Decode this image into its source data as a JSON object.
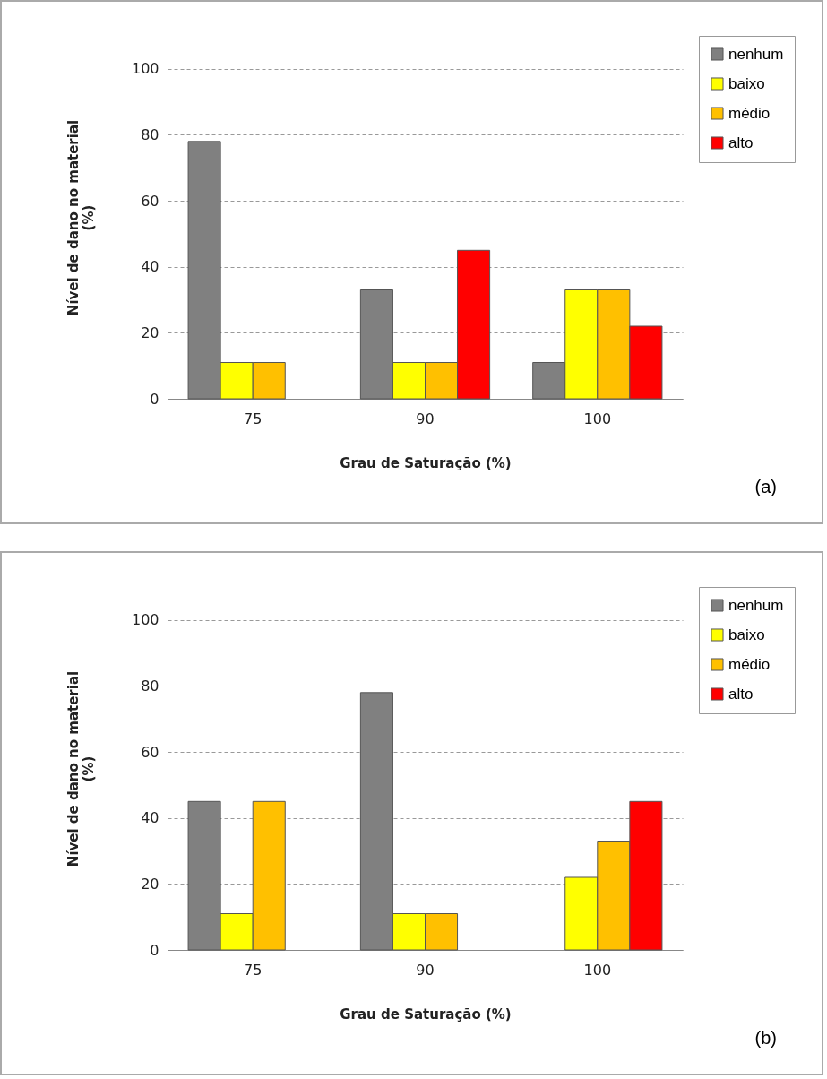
{
  "chart_data": [
    {
      "type": "bar",
      "xlabel": "Grau de Saturação (%)",
      "ylabel": "Nível de dano no material (%)",
      "categories": [
        "75",
        "90",
        "100"
      ],
      "series": [
        {
          "name": "nenhum",
          "color": "#808080",
          "values": [
            78,
            33,
            11
          ]
        },
        {
          "name": "baixo",
          "color": "#ffff00",
          "values": [
            11,
            11,
            33
          ]
        },
        {
          "name": "médio",
          "color": "#ffc000",
          "values": [
            11,
            11,
            33
          ]
        },
        {
          "name": "alto",
          "color": "#ff0000",
          "values": [
            null,
            45,
            22
          ]
        }
      ],
      "ylim": [
        0,
        110
      ],
      "yticks": [
        0,
        20,
        40,
        60,
        80,
        100
      ],
      "grid": "y",
      "legend": "right",
      "annotations": [
        "(a)"
      ]
    },
    {
      "type": "bar",
      "xlabel": "Grau de Saturação (%)",
      "ylabel": "Nível de dano no material (%)",
      "categories": [
        "75",
        "90",
        "100"
      ],
      "series": [
        {
          "name": "nenhum",
          "color": "#808080",
          "values": [
            45,
            78,
            null
          ]
        },
        {
          "name": "baixo",
          "color": "#ffff00",
          "values": [
            11,
            11,
            22
          ]
        },
        {
          "name": "médio",
          "color": "#ffc000",
          "values": [
            45,
            11,
            33
          ]
        },
        {
          "name": "alto",
          "color": "#ff0000",
          "values": [
            null,
            null,
            45
          ]
        }
      ],
      "ylim": [
        0,
        110
      ],
      "yticks": [
        0,
        20,
        40,
        60,
        80,
        100
      ],
      "grid": "y",
      "legend": "right",
      "annotations": [
        "(b)"
      ]
    }
  ]
}
